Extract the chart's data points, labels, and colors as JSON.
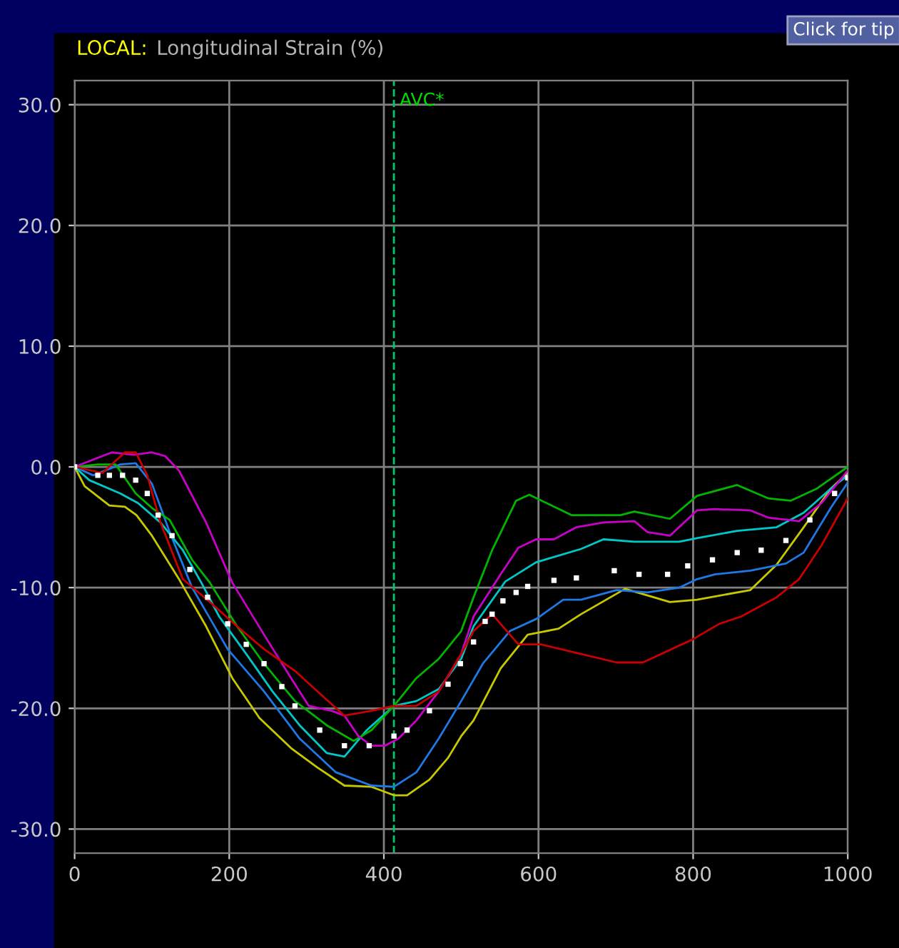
{
  "chart_data": {
    "type": "line",
    "title": "LOCAL:",
    "subtitle": "Longitudinal Strain (%)",
    "annotations": [
      "Click for tip"
    ],
    "xlim": [
      0,
      1000
    ],
    "ylim": [
      -32,
      32
    ],
    "xticks": [
      0,
      200,
      400,
      600,
      800,
      1000
    ],
    "yticks": [
      {
        "value": -30,
        "label": "-30.0"
      },
      {
        "value": -20,
        "label": "-20.0"
      },
      {
        "value": -10,
        "label": "-10.0"
      },
      {
        "value": 0,
        "label": "0.0"
      },
      {
        "value": 10,
        "label": "10.0"
      },
      {
        "value": 20,
        "label": "20.0"
      },
      {
        "value": 30,
        "label": "30.0"
      }
    ],
    "grid": true,
    "legend": false,
    "line_style": "solid",
    "ref_lines": [
      {
        "axis": "x",
        "value": 413,
        "label": "AVC*",
        "color": "#00c864",
        "line_style": "dashed"
      }
    ],
    "series": [
      {
        "color": "#c8c800",
        "x": [
          0,
          13,
          45,
          65,
          80,
          100,
          135,
          170,
          204,
          239,
          280,
          314,
          349,
          384,
          413,
          430,
          459,
          483,
          500,
          516,
          551,
          586,
          626,
          655,
          712,
          770,
          805,
          874,
          908,
          943,
          978,
          1000
        ],
        "values": [
          0,
          -1.6,
          -3.2,
          -3.3,
          -4,
          -5.7,
          -9.3,
          -13.2,
          -17.5,
          -20.8,
          -23.3,
          -24.9,
          -26.4,
          -26.5,
          -27.2,
          -27.2,
          -25.9,
          -24.1,
          -22.3,
          -21,
          -16.7,
          -13.9,
          -13.4,
          -12.2,
          -10.1,
          -11.2,
          -11,
          -10.2,
          -8.1,
          -5,
          -1.8,
          -0.5
        ]
      },
      {
        "color": "#1e78e6",
        "x": [
          0,
          24,
          59,
          79,
          100,
          123,
          152,
          198,
          245,
          291,
          338,
          384,
          413,
          442,
          471,
          500,
          528,
          563,
          597,
          632,
          655,
          701,
          741,
          782,
          805,
          828,
          874,
          920,
          943,
          978,
          1000
        ],
        "values": [
          0,
          -0.7,
          0.2,
          0.3,
          -1.4,
          -5.4,
          -10,
          -15.1,
          -18.6,
          -22.5,
          -25.3,
          -26.4,
          -26.5,
          -25.3,
          -22.5,
          -19.4,
          -16.3,
          -13.6,
          -12.6,
          -11,
          -11,
          -10.2,
          -10.4,
          -10,
          -9.3,
          -8.9,
          -8.6,
          -8,
          -7.1,
          -3.4,
          -1.3
        ]
      },
      {
        "color": "#00c8c8",
        "x": [
          0,
          19,
          59,
          82,
          111,
          140,
          164,
          187,
          222,
          256,
          291,
          326,
          349,
          378,
          413,
          442,
          471,
          500,
          516,
          557,
          597,
          655,
          684,
          724,
          782,
          805,
          857,
          908,
          943,
          978,
          1000
        ],
        "values": [
          0,
          -1.1,
          -2.2,
          -3,
          -4.6,
          -6.9,
          -9.6,
          -12.4,
          -15.5,
          -18.6,
          -21.4,
          -23.7,
          -24,
          -21.8,
          -19.8,
          -19.4,
          -18.4,
          -15.9,
          -13.2,
          -9.5,
          -7.9,
          -6.8,
          -6,
          -6.2,
          -6.2,
          -5.9,
          -5.3,
          -5,
          -3.8,
          -1.8,
          -0.7
        ]
      },
      {
        "color": "#00b400",
        "x": [
          0,
          30,
          53,
          79,
          100,
          123,
          152,
          175,
          210,
          245,
          285,
          326,
          361,
          384,
          413,
          442,
          471,
          500,
          516,
          540,
          571,
          588,
          643,
          706,
          724,
          770,
          805,
          857,
          897,
          926,
          960,
          1000
        ],
        "values": [
          0,
          0.2,
          0.2,
          -2.2,
          -3.4,
          -4.4,
          -7.7,
          -9.6,
          -13.2,
          -16.3,
          -19.4,
          -21.4,
          -22.7,
          -21.8,
          -19.8,
          -17.5,
          -15.9,
          -13.6,
          -10.8,
          -6.9,
          -2.8,
          -2.3,
          -4,
          -4,
          -3.7,
          -4.3,
          -2.4,
          -1.5,
          -2.6,
          -2.8,
          -1.8,
          0
        ]
      },
      {
        "color": "#c800c8",
        "x": [
          0,
          48,
          77,
          100,
          117,
          135,
          170,
          204,
          245,
          280,
          303,
          332,
          349,
          367,
          384,
          401,
          419,
          442,
          471,
          500,
          516,
          551,
          574,
          597,
          620,
          649,
          684,
          724,
          741,
          770,
          805,
          828,
          874,
          897,
          937,
          966,
          1000
        ],
        "values": [
          0,
          1.2,
          1,
          1.2,
          0.9,
          -0.3,
          -4.6,
          -9.6,
          -13.9,
          -17.5,
          -19.8,
          -20.2,
          -20.6,
          -22.3,
          -23.1,
          -23.1,
          -22.5,
          -21,
          -18.6,
          -15.5,
          -12.4,
          -8.9,
          -6.7,
          -6,
          -6,
          -5,
          -4.6,
          -4.5,
          -5.4,
          -5.7,
          -3.6,
          -3.5,
          -3.6,
          -4.2,
          -4.5,
          -3,
          -0.3
        ]
      },
      {
        "color": "#c80000",
        "x": [
          0,
          36,
          65,
          79,
          94,
          111,
          140,
          175,
          210,
          245,
          285,
          314,
          349,
          384,
          413,
          442,
          471,
          500,
          516,
          540,
          574,
          603,
          655,
          701,
          735,
          799,
          834,
          862,
          908,
          937,
          966,
          1000
        ],
        "values": [
          0,
          -0.5,
          1.2,
          1.2,
          -0.7,
          -4.6,
          -9.3,
          -11.2,
          -13.2,
          -15.1,
          -16.9,
          -18.6,
          -20.6,
          -20.2,
          -19.8,
          -19.8,
          -18.6,
          -15.5,
          -13.6,
          -12.2,
          -14.7,
          -14.7,
          -15.5,
          -16.2,
          -16.2,
          -14.3,
          -13,
          -12.4,
          -10.8,
          -9.3,
          -6.5,
          -2.6
        ]
      },
      {
        "type": "scatter",
        "marker": "square",
        "color": "#ffffff",
        "x": [
          0,
          30,
          45,
          62,
          79,
          94,
          108,
          126,
          149,
          172,
          198,
          222,
          245,
          268,
          285,
          317,
          349,
          381,
          413,
          430,
          459,
          483,
          499,
          516,
          531,
          540,
          554,
          571,
          586,
          620,
          649,
          698,
          730,
          767,
          793,
          825,
          857,
          888,
          920,
          951,
          983,
          1000
        ],
        "values": [
          0,
          -0.7,
          -0.7,
          -0.7,
          -1.1,
          -2.2,
          -4,
          -5.7,
          -8.5,
          -10.8,
          -13,
          -14.7,
          -16.3,
          -18.2,
          -19.8,
          -21.8,
          -23.1,
          -23.1,
          -22.3,
          -21.8,
          -20.2,
          -18,
          -16.3,
          -14.5,
          -12.8,
          -12.2,
          -11.1,
          -10.4,
          -9.9,
          -9.4,
          -9.2,
          -8.6,
          -8.9,
          -8.9,
          -8.2,
          -7.7,
          -7.1,
          -6.9,
          -6.1,
          -4.4,
          -2.2,
          -0.9
        ]
      }
    ]
  }
}
